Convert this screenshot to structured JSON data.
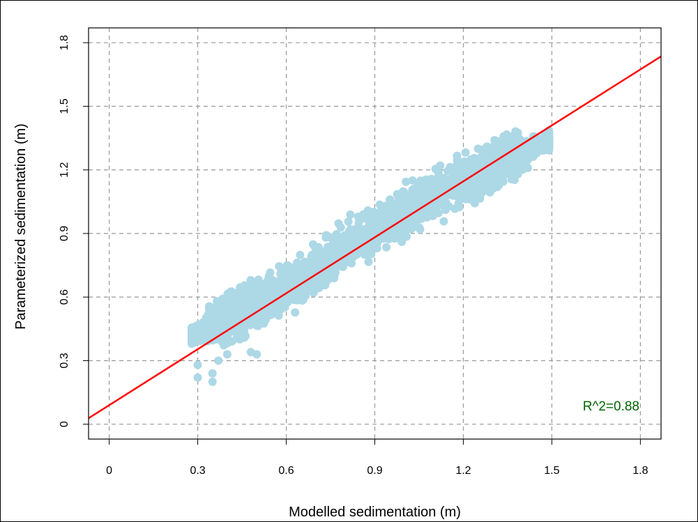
{
  "chart_data": {
    "type": "scatter",
    "title": "",
    "xlabel": "Modelled sedimentation (m)",
    "ylabel": "Parameterized sedimentation (m)",
    "xlim": [
      -0.07,
      1.87
    ],
    "ylim": [
      -0.07,
      1.87
    ],
    "xticks": [
      "0",
      "0.3",
      "0.6",
      "0.9",
      "1.2",
      "1.5",
      "1.8"
    ],
    "yticks": [
      "0",
      "0.3",
      "0.6",
      "0.9",
      "1.2",
      "1.5",
      "1.8"
    ],
    "grid": true,
    "annotation": "R^2=0.88",
    "colors": {
      "points": "#add8e6",
      "fit_line": "#ff0000",
      "annotation": "#006400",
      "grid": "#999999"
    },
    "fit_line": {
      "intercept": 0.09,
      "slope": 0.88
    },
    "point_cloud": {
      "description_of_trend": "dense band",
      "centerline": [
        [
          0.28,
          0.42
        ],
        [
          0.4,
          0.5
        ],
        [
          0.5,
          0.56
        ],
        [
          0.6,
          0.64
        ],
        [
          0.7,
          0.73
        ],
        [
          0.8,
          0.83
        ],
        [
          0.9,
          0.92
        ],
        [
          1.0,
          1.0
        ],
        [
          1.1,
          1.08
        ],
        [
          1.2,
          1.15
        ],
        [
          1.3,
          1.22
        ],
        [
          1.4,
          1.28
        ],
        [
          1.49,
          1.34
        ]
      ],
      "outliers": [
        [
          0.3,
          0.22
        ],
        [
          0.3,
          0.28
        ],
        [
          0.35,
          0.2
        ],
        [
          0.35,
          0.24
        ],
        [
          0.37,
          0.3
        ],
        [
          0.4,
          0.33
        ],
        [
          0.48,
          0.34
        ],
        [
          0.5,
          0.33
        ],
        [
          1.25,
          1.3
        ],
        [
          1.28,
          1.31
        ],
        [
          1.45,
          1.35
        ],
        [
          1.49,
          1.35
        ],
        [
          1.44,
          1.3
        ]
      ]
    }
  }
}
